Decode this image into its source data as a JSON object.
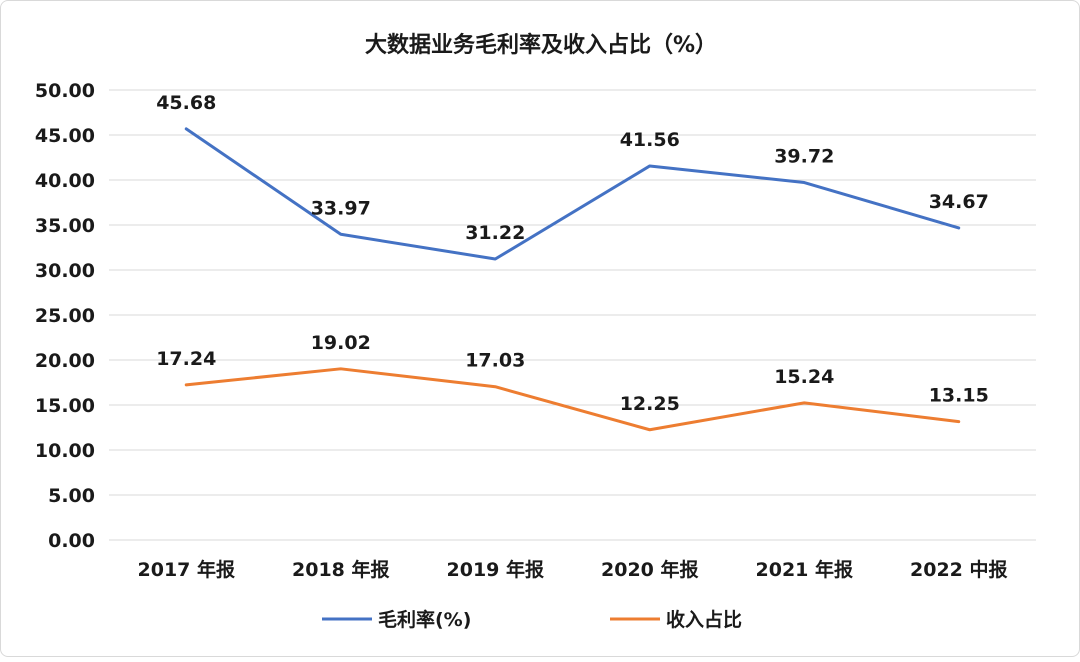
{
  "chart_data": {
    "type": "line",
    "title": "大数据业务毛利率及收入占比（%）",
    "xlabel": "",
    "ylabel": "",
    "categories": [
      "2017 年报",
      "2018 年报",
      "2019 年报",
      "2020 年报",
      "2021 年报",
      "2022 中报"
    ],
    "ylim": [
      0,
      50
    ],
    "ytick_step": 5,
    "ytick_labels": [
      "0.00",
      "5.00",
      "10.00",
      "15.00",
      "20.00",
      "25.00",
      "30.00",
      "35.00",
      "40.00",
      "45.00",
      "50.00"
    ],
    "grid": true,
    "legend_position": "bottom",
    "series": [
      {
        "name": "毛利率(%)",
        "color": "#4472c4",
        "values": [
          45.68,
          33.97,
          31.22,
          41.56,
          39.72,
          34.67
        ],
        "labels": [
          "45.68",
          "33.97",
          "31.22",
          "41.56",
          "39.72",
          "34.67"
        ]
      },
      {
        "name": "收入占比",
        "color": "#ed7d31",
        "values": [
          17.24,
          19.02,
          17.03,
          12.25,
          15.24,
          13.15
        ],
        "labels": [
          "17.24",
          "19.02",
          "17.03",
          "12.25",
          "15.24",
          "13.15"
        ]
      }
    ]
  }
}
